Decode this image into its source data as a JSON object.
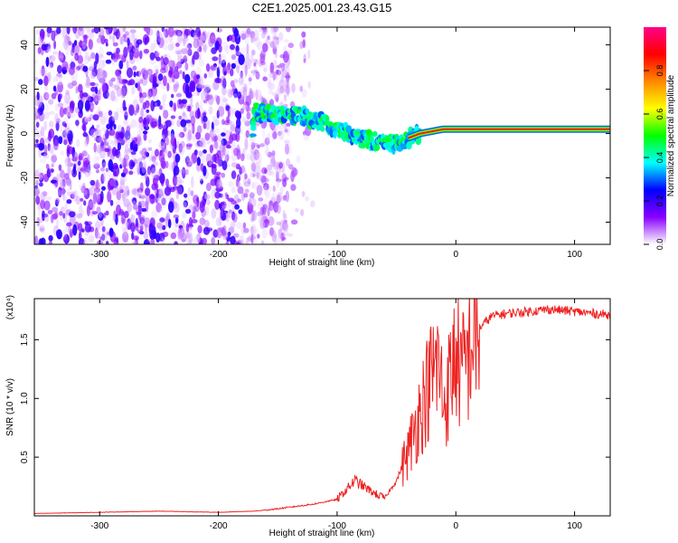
{
  "title": "C2E1.2025.001.23.43.G15",
  "chart_data": [
    {
      "type": "heatmap",
      "xlabel": "Height of straight line (km)",
      "ylabel": "Frequency (Hz)",
      "xlim": [
        -355,
        130
      ],
      "ylim": [
        -50,
        48
      ],
      "x_ticks": [
        -300,
        -200,
        -100,
        0,
        100
      ],
      "y_ticks": [
        -40,
        -20,
        0,
        20,
        40
      ],
      "noise_region_x": [
        -355,
        -140
      ],
      "signal_track": [
        [
          -170,
          10
        ],
        [
          -150,
          8
        ],
        [
          -130,
          8
        ],
        [
          -110,
          5
        ],
        [
          -95,
          1
        ],
        [
          -80,
          -2
        ],
        [
          -65,
          -4
        ],
        [
          -50,
          -5
        ],
        [
          -40,
          -2
        ],
        [
          -30,
          0
        ],
        [
          -20,
          1
        ],
        [
          -10,
          2
        ],
        [
          0,
          2
        ],
        [
          50,
          2
        ],
        [
          95,
          2
        ],
        [
          130,
          2
        ]
      ],
      "colorbar": {
        "label": "Normalized spectral amplitude",
        "range": [
          0,
          1
        ],
        "ticks": [
          0.0,
          0.2,
          0.4,
          0.6,
          0.8
        ],
        "tick_labels": [
          "0.0",
          "0.2",
          "0.4",
          "0.6",
          "0.8"
        ],
        "colormap": [
          "#ffffff",
          "#8800ff",
          "#0000ff",
          "#00ffff",
          "#00ff00",
          "#ffff00",
          "#ff8800",
          "#ff0000",
          "#ff0088"
        ]
      }
    },
    {
      "type": "line",
      "xlabel": "Height of straight line (km)",
      "ylabel": "SNR (10 * v/v)",
      "y_scale_label": "(x10⁴)",
      "xlim": [
        -355,
        130
      ],
      "ylim": [
        0,
        1.85
      ],
      "x_ticks": [
        -300,
        -200,
        -100,
        0,
        100
      ],
      "y_ticks": [
        0.5,
        1.0,
        1.5
      ],
      "y_tick_labels": [
        "0.5",
        "1.0",
        "1.5"
      ],
      "color": "#ee2222",
      "x": [
        -355,
        -300,
        -250,
        -200,
        -170,
        -150,
        -120,
        -100,
        -85,
        -70,
        -60,
        -50,
        -40,
        -30,
        -25,
        -20,
        -15,
        -10,
        -5,
        0,
        5,
        10,
        15,
        20,
        25,
        30,
        40,
        60,
        80,
        90,
        100,
        110,
        120,
        130
      ],
      "y": [
        0.02,
        0.03,
        0.04,
        0.03,
        0.04,
        0.06,
        0.1,
        0.14,
        0.3,
        0.2,
        0.15,
        0.3,
        0.55,
        0.9,
        1.05,
        1.2,
        1.3,
        0.95,
        1.15,
        1.4,
        1.2,
        1.35,
        1.55,
        1.6,
        1.65,
        1.7,
        1.72,
        1.74,
        1.76,
        1.75,
        1.74,
        1.73,
        1.72,
        1.71
      ]
    }
  ]
}
